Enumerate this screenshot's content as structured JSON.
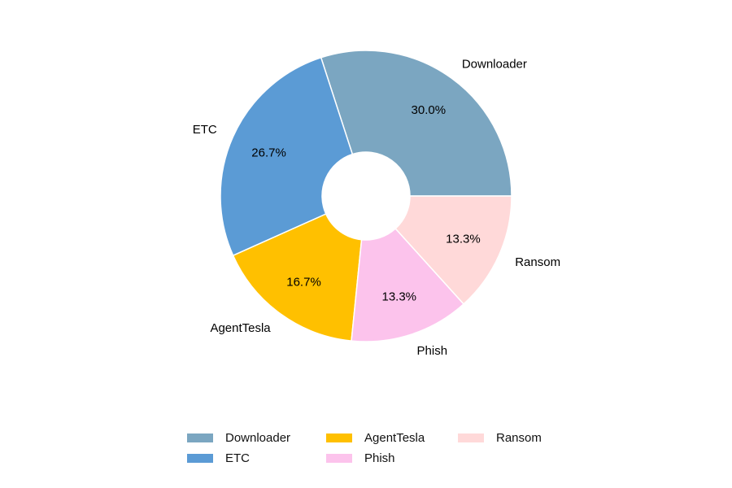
{
  "chart_data": {
    "type": "pie",
    "donut": true,
    "categories": [
      "Downloader",
      "ETC",
      "AgentTesla",
      "Phish",
      "Ransom"
    ],
    "values": [
      30.0,
      26.7,
      16.7,
      13.3,
      13.3
    ],
    "value_labels": [
      "30.0%",
      "26.7%",
      "16.7%",
      "13.3%",
      "13.3%"
    ],
    "colors": [
      "#7ba6c1",
      "#5b9bd5",
      "#ffc000",
      "#fcc3ec",
      "#ffd9d9"
    ],
    "start_angle_deg": 0,
    "direction": "counterclockwise",
    "legend": {
      "placement": "bottom",
      "columns": [
        [
          "Downloader",
          "ETC"
        ],
        [
          "AgentTesla",
          "Phish"
        ],
        [
          "Ransom"
        ]
      ]
    }
  }
}
